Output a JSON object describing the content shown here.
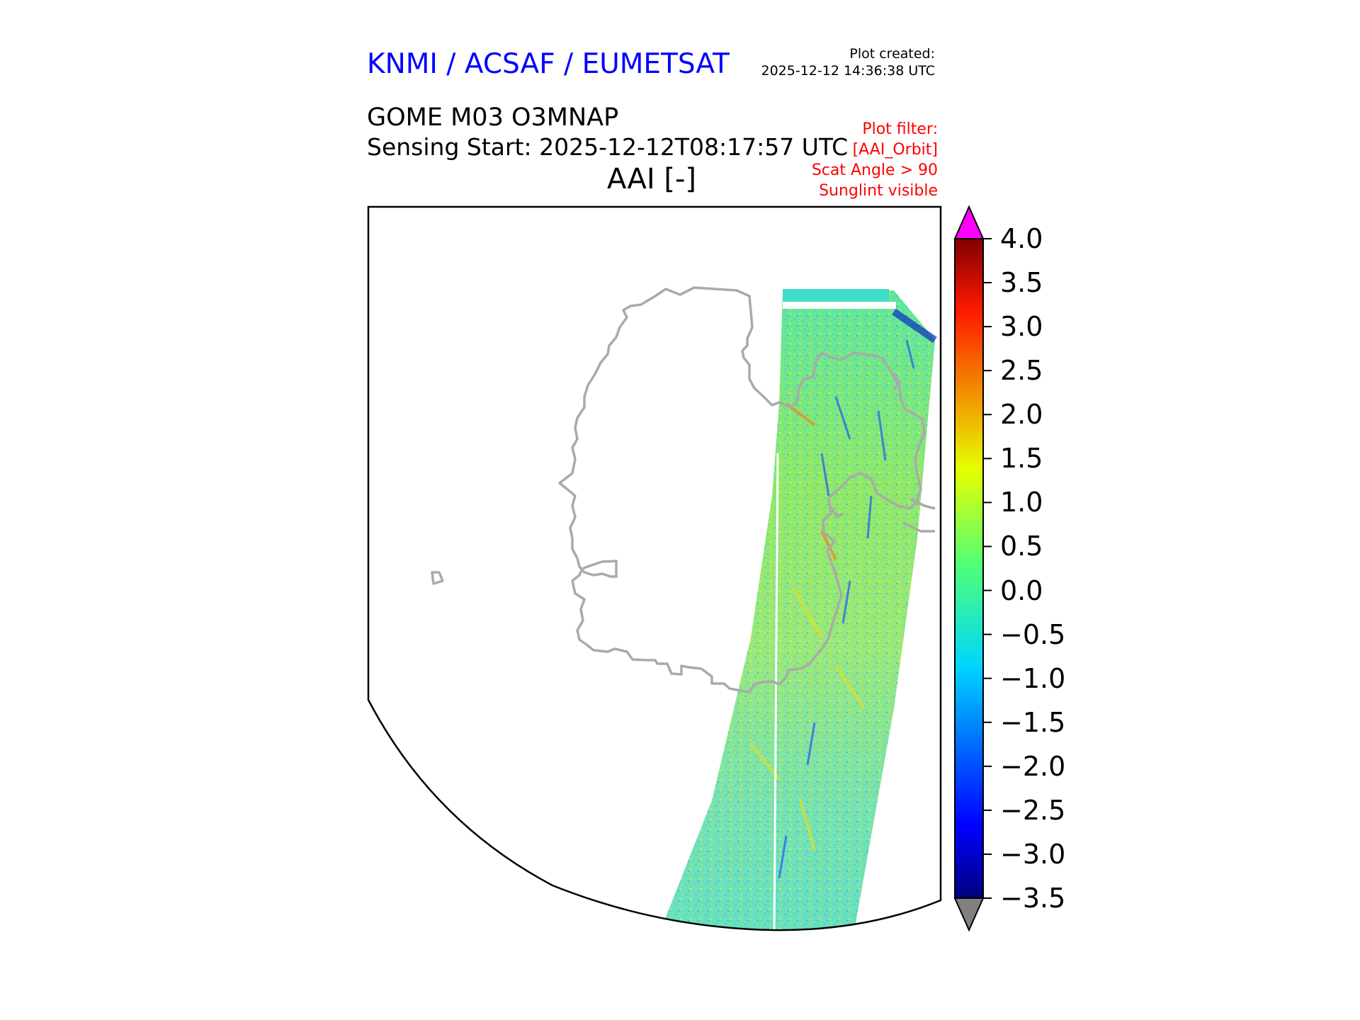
{
  "header": {
    "organization": "KNMI / ACSAF / EUMETSAT",
    "plot_created_label": "Plot created:",
    "plot_created_time": "2025-12-12 14:36:38 UTC",
    "product": "GOME M03 O3MNAP",
    "sensing_start": "Sensing Start: 2025-12-12T08:17:57 UTC",
    "variable": "AAI [-]"
  },
  "plot_filter": {
    "label": "Plot filter:",
    "lines": [
      "[AAI_Orbit]",
      "Scat Angle > 90",
      "Sunglint visible"
    ]
  },
  "colorbar": {
    "ticks": [
      "4.0",
      "3.5",
      "3.0",
      "2.5",
      "2.0",
      "1.5",
      "1.0",
      "0.5",
      "0.0",
      "−0.5",
      "−1.0",
      "−1.5",
      "−2.0",
      "−2.5",
      "−3.0",
      "−3.5"
    ],
    "min": -3.5,
    "max": 4.0,
    "over_color": "#ff00ff",
    "under_color": "#808080"
  },
  "colors": {
    "organization": "#0000ff",
    "filter": "#ff0000",
    "coastline": "#aaaaaa",
    "frame": "#000000"
  }
}
